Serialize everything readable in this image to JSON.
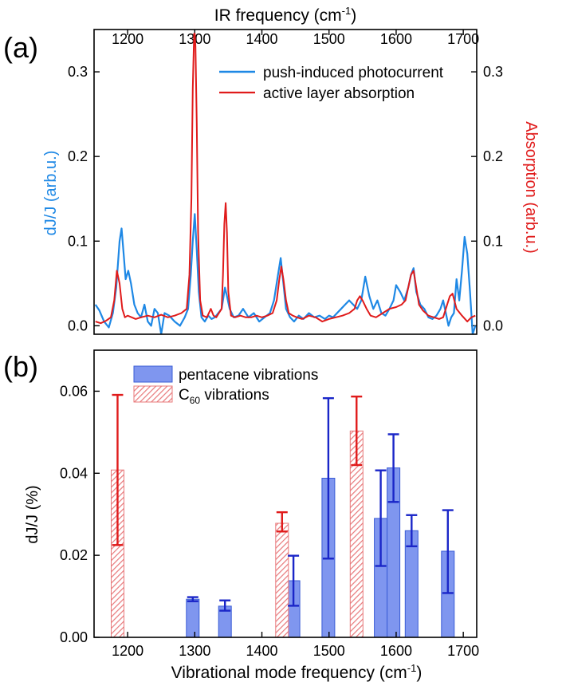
{
  "colors": {
    "blue": "#1e88e5",
    "red": "#e01b1b",
    "bar_fill": "#7f96ef",
    "bar_edge": "#3a5cd6",
    "errbar_blue": "#1a26c8",
    "axis": "#000000"
  },
  "chart_data": [
    {
      "panel": "(a)",
      "type": "line",
      "top_axis_label": "IR frequency (cm",
      "top_axis_unit_sup": "-1",
      "top_axis_unit_close": ")",
      "ylabel_left": "dJ/J (arb.u.)",
      "ylabel_right": "Absorption (arb.u.)",
      "xlim": [
        1150,
        1720
      ],
      "ylim": [
        -0.01,
        0.35
      ],
      "x_ticks": [
        "1200",
        "1300",
        "1400",
        "1500",
        "1600",
        "1700"
      ],
      "x_tick_values": [
        1200,
        1300,
        1400,
        1500,
        1600,
        1700
      ],
      "y_ticks": [
        "0.0",
        "0.1",
        "0.2",
        "0.3"
      ],
      "y_tick_values": [
        0.0,
        0.1,
        0.2,
        0.3
      ],
      "legend_position": "top-right",
      "series": [
        {
          "name": "push-induced photocurrent",
          "color": "#1e88e5",
          "x": [
            1152,
            1158,
            1165,
            1172,
            1178,
            1183,
            1188,
            1191,
            1194,
            1197,
            1201,
            1205,
            1210,
            1215,
            1220,
            1225,
            1230,
            1235,
            1240,
            1245,
            1250,
            1255,
            1262,
            1270,
            1278,
            1285,
            1290,
            1294,
            1297,
            1300,
            1303,
            1306,
            1310,
            1315,
            1320,
            1325,
            1330,
            1335,
            1340,
            1345,
            1348,
            1352,
            1358,
            1365,
            1372,
            1380,
            1388,
            1396,
            1404,
            1412,
            1418,
            1424,
            1428,
            1432,
            1436,
            1442,
            1448,
            1455,
            1462,
            1470,
            1478,
            1486,
            1494,
            1500,
            1506,
            1512,
            1518,
            1524,
            1530,
            1536,
            1542,
            1548,
            1554,
            1560,
            1566,
            1572,
            1578,
            1584,
            1590,
            1596,
            1600,
            1606,
            1612,
            1618,
            1622,
            1626,
            1630,
            1636,
            1642,
            1648,
            1654,
            1660,
            1666,
            1670,
            1674,
            1678,
            1682,
            1686,
            1690,
            1694,
            1698,
            1702,
            1706,
            1710,
            1714,
            1718
          ],
          "y": [
            0.025,
            0.018,
            0.005,
            -0.002,
            0.015,
            0.045,
            0.1,
            0.115,
            0.085,
            0.055,
            0.065,
            0.05,
            0.025,
            0.015,
            0.01,
            0.025,
            0.005,
            0.0,
            0.02,
            0.015,
            -0.01,
            0.015,
            0.012,
            0.005,
            0.0,
            0.01,
            0.02,
            0.06,
            0.1,
            0.132,
            0.09,
            0.04,
            0.01,
            0.005,
            0.012,
            0.008,
            0.01,
            0.015,
            0.02,
            0.045,
            0.035,
            0.02,
            0.01,
            0.012,
            0.02,
            0.01,
            0.015,
            0.005,
            0.01,
            0.015,
            0.03,
            0.06,
            0.08,
            0.05,
            0.02,
            0.01,
            0.005,
            0.012,
            0.008,
            0.015,
            0.01,
            0.012,
            0.008,
            0.012,
            0.01,
            0.015,
            0.02,
            0.025,
            0.03,
            0.025,
            0.02,
            0.03,
            0.058,
            0.035,
            0.02,
            0.03,
            0.015,
            0.012,
            0.02,
            0.03,
            0.048,
            0.04,
            0.03,
            0.045,
            0.06,
            0.068,
            0.04,
            0.025,
            0.02,
            0.01,
            0.008,
            0.012,
            0.02,
            0.03,
            0.015,
            0.0,
            0.01,
            0.015,
            0.055,
            0.03,
            0.065,
            0.105,
            0.085,
            0.04,
            -0.01,
            0.0
          ]
        },
        {
          "name": "active layer absorption",
          "color": "#e01b1b",
          "x": [
            1152,
            1160,
            1168,
            1175,
            1180,
            1184,
            1188,
            1192,
            1196,
            1200,
            1206,
            1212,
            1220,
            1230,
            1240,
            1250,
            1260,
            1270,
            1280,
            1288,
            1292,
            1295,
            1297,
            1299,
            1300,
            1301,
            1303,
            1305,
            1308,
            1312,
            1318,
            1324,
            1328,
            1332,
            1336,
            1340,
            1342,
            1344,
            1346,
            1348,
            1350,
            1354,
            1360,
            1368,
            1376,
            1384,
            1392,
            1400,
            1408,
            1416,
            1422,
            1426,
            1429,
            1432,
            1436,
            1440,
            1446,
            1452,
            1460,
            1470,
            1480,
            1490,
            1500,
            1510,
            1520,
            1530,
            1538,
            1542,
            1546,
            1550,
            1556,
            1562,
            1570,
            1580,
            1590,
            1600,
            1608,
            1614,
            1618,
            1622,
            1626,
            1630,
            1634,
            1640,
            1648,
            1656,
            1664,
            1670,
            1676,
            1680,
            1684,
            1690,
            1698,
            1706,
            1712,
            1718
          ],
          "y": [
            0.005,
            0.003,
            0.006,
            0.01,
            0.03,
            0.065,
            0.05,
            0.02,
            0.01,
            0.012,
            0.01,
            0.008,
            0.01,
            0.012,
            0.01,
            0.013,
            0.01,
            0.012,
            0.015,
            0.02,
            0.06,
            0.15,
            0.28,
            0.345,
            0.345,
            0.33,
            0.24,
            0.11,
            0.03,
            0.012,
            0.01,
            0.02,
            0.012,
            0.01,
            0.015,
            0.02,
            0.06,
            0.12,
            0.145,
            0.11,
            0.04,
            0.012,
            0.01,
            0.012,
            0.01,
            0.01,
            0.012,
            0.01,
            0.012,
            0.015,
            0.03,
            0.055,
            0.07,
            0.055,
            0.03,
            0.015,
            0.012,
            0.01,
            0.008,
            0.012,
            0.01,
            0.005,
            0.008,
            0.01,
            0.012,
            0.015,
            0.02,
            0.03,
            0.035,
            0.03,
            0.02,
            0.012,
            0.01,
            0.015,
            0.02,
            0.022,
            0.025,
            0.03,
            0.045,
            0.06,
            0.065,
            0.045,
            0.025,
            0.018,
            0.012,
            0.01,
            0.008,
            0.01,
            0.025,
            0.035,
            0.038,
            0.02,
            0.012,
            0.005,
            0.01,
            0.012
          ]
        }
      ]
    },
    {
      "panel": "(b)",
      "type": "bar",
      "xlabel": "Vibrational mode frequency (cm",
      "xlabel_unit_sup": "-1",
      "xlabel_unit_close": ")",
      "ylabel": "dJ/J (%)",
      "xlim": [
        1150,
        1720
      ],
      "ylim": [
        0,
        0.07
      ],
      "x_ticks": [
        "1200",
        "1300",
        "1400",
        "1500",
        "1600",
        "1700"
      ],
      "x_tick_values": [
        1200,
        1300,
        1400,
        1500,
        1600,
        1700
      ],
      "y_ticks": [
        "0.00",
        "0.02",
        "0.04",
        "0.06"
      ],
      "y_tick_values": [
        0.0,
        0.02,
        0.04,
        0.06
      ],
      "legend_position": "top-left",
      "series": [
        {
          "name": "pentacene vibrations",
          "style": "solid",
          "x": [
            1297,
            1345,
            1447,
            1499,
            1577,
            1596,
            1623,
            1677
          ],
          "values": [
            0.0093,
            0.0076,
            0.0138,
            0.0388,
            0.029,
            0.0413,
            0.026,
            0.021
          ],
          "err_low": [
            0.0088,
            0.0065,
            0.0077,
            0.0192,
            0.0174,
            0.033,
            0.0222,
            0.0108
          ],
          "err_high": [
            0.0098,
            0.009,
            0.0199,
            0.0583,
            0.0407,
            0.0495,
            0.0298,
            0.031
          ]
        },
        {
          "name": "C",
          "name_sub": "60",
          "name_rest": " vibrations",
          "style": "hatched",
          "x": [
            1185,
            1430,
            1541
          ],
          "values": [
            0.0408,
            0.0278,
            0.0503
          ],
          "err_low": [
            0.0225,
            0.0258,
            0.042
          ],
          "err_high": [
            0.0591,
            0.0305,
            0.0587
          ]
        }
      ]
    }
  ]
}
